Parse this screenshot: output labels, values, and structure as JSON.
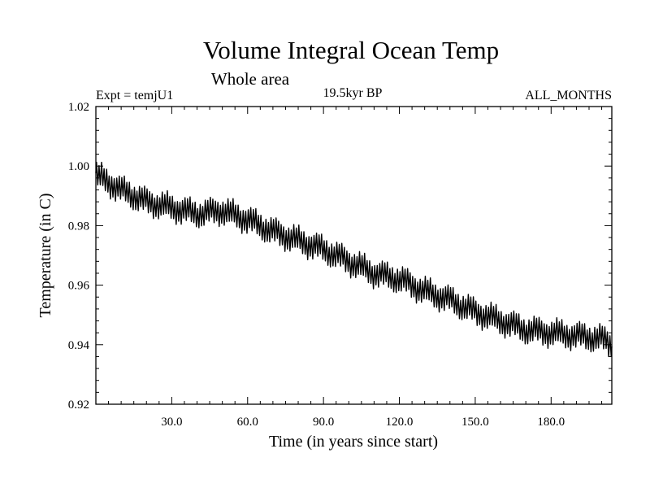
{
  "chart_data": {
    "type": "line",
    "title": "Volume Integral Ocean Temp",
    "subtitle": "Whole area",
    "annotations": {
      "experiment": "Expt = temjU1",
      "period": "19.5kyr BP",
      "months": "ALL_MONTHS"
    },
    "xlabel": "Time (in years since start)",
    "ylabel": "Temperature (in C)",
    "xlim": [
      0,
      204
    ],
    "ylim": [
      0.92,
      1.02
    ],
    "x_ticks": [
      {
        "value": 30,
        "label": "30.0"
      },
      {
        "value": 60,
        "label": "60.0"
      },
      {
        "value": 90,
        "label": "90.0"
      },
      {
        "value": 120,
        "label": "120.0"
      },
      {
        "value": 150,
        "label": "150.0"
      },
      {
        "value": 180,
        "label": "180.0"
      }
    ],
    "y_ticks": [
      {
        "value": 0.92,
        "label": "0.92"
      },
      {
        "value": 0.94,
        "label": "0.94"
      },
      {
        "value": 0.96,
        "label": "0.96"
      },
      {
        "value": 0.98,
        "label": "0.98"
      },
      {
        "value": 1.0,
        "label": "1.00"
      },
      {
        "value": 1.02,
        "label": "1.02"
      }
    ],
    "grid": false,
    "seasonal_cycle": {
      "period_years": 1,
      "amplitude": 0.0035
    },
    "series": [
      {
        "name": "Volume Integral Ocean Temp",
        "color": "#000000",
        "x": [
          0,
          10,
          20,
          30,
          40,
          50,
          60,
          70,
          80,
          90,
          100,
          110,
          120,
          130,
          140,
          150,
          160,
          170,
          180,
          190,
          200,
          204
        ],
        "mean": [
          0.997,
          0.992,
          0.988,
          0.986,
          0.984,
          0.985,
          0.982,
          0.978,
          0.975,
          0.972,
          0.968,
          0.964,
          0.962,
          0.958,
          0.955,
          0.951,
          0.948,
          0.945,
          0.944,
          0.943,
          0.942,
          0.94
        ]
      }
    ]
  }
}
